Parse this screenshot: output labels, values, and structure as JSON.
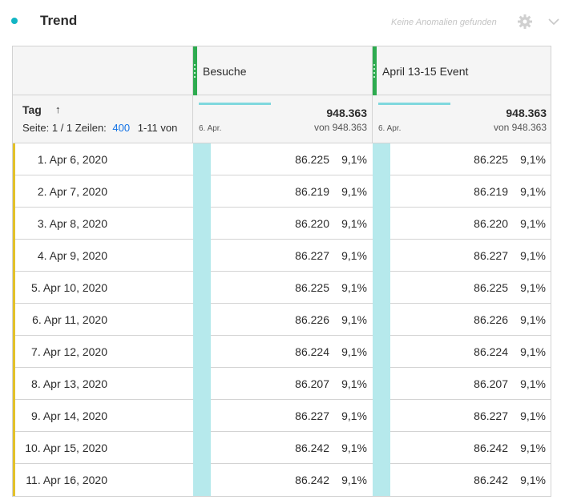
{
  "header": {
    "title": "Trend",
    "anomaly_text": "Keine Anomalien gefunden",
    "accent_color": "#12b5c4"
  },
  "columns": [
    {
      "label": "Besuche",
      "total": "948.363",
      "of_total": "von 948.363",
      "spark_date": "6. Apr."
    },
    {
      "label": "April 13-15 Event",
      "total": "948.363",
      "of_total": "von 948.363",
      "spark_date": "6. Apr."
    }
  ],
  "dimension": {
    "label": "Tag",
    "sort_icon": "arrow-up-icon",
    "pager_prefix": "Seite: 1 / 1 Zeilen:",
    "rows_per_page": "400",
    "range_text": "1-11 von"
  },
  "rows": [
    {
      "name": "1. Apr 6, 2020",
      "v1": "86.225",
      "p1": "9,1%",
      "v2": "86.225",
      "p2": "9,1%"
    },
    {
      "name": "2. Apr 7, 2020",
      "v1": "86.219",
      "p1": "9,1%",
      "v2": "86.219",
      "p2": "9,1%"
    },
    {
      "name": "3. Apr 8, 2020",
      "v1": "86.220",
      "p1": "9,1%",
      "v2": "86.220",
      "p2": "9,1%"
    },
    {
      "name": "4. Apr 9, 2020",
      "v1": "86.227",
      "p1": "9,1%",
      "v2": "86.227",
      "p2": "9,1%"
    },
    {
      "name": "5. Apr 10, 2020",
      "v1": "86.225",
      "p1": "9,1%",
      "v2": "86.225",
      "p2": "9,1%"
    },
    {
      "name": "6. Apr 11, 2020",
      "v1": "86.226",
      "p1": "9,1%",
      "v2": "86.226",
      "p2": "9,1%"
    },
    {
      "name": "7. Apr 12, 2020",
      "v1": "86.224",
      "p1": "9,1%",
      "v2": "86.224",
      "p2": "9,1%"
    },
    {
      "name": "8. Apr 13, 2020",
      "v1": "86.207",
      "p1": "9,1%",
      "v2": "86.207",
      "p2": "9,1%"
    },
    {
      "name": "9. Apr 14, 2020",
      "v1": "86.227",
      "p1": "9,1%",
      "v2": "86.227",
      "p2": "9,1%"
    },
    {
      "name": "10. Apr 15, 2020",
      "v1": "86.242",
      "p1": "9,1%",
      "v2": "86.242",
      "p2": "9,1%"
    },
    {
      "name": "11. Apr 16, 2020",
      "v1": "86.242",
      "p1": "9,1%",
      "v2": "86.242",
      "p2": "9,1%"
    }
  ]
}
